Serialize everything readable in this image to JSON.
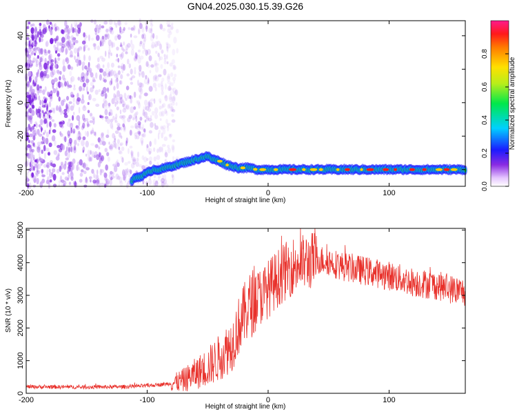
{
  "title": "GN04.2025.030.15.39.G26",
  "colors": {
    "snr_line": "#e8302a",
    "ridge": "#1fd03a",
    "scatter": "#7a1fe0",
    "frame": "#000000"
  },
  "chart_data": [
    {
      "type": "heatmap",
      "xlabel": "Height of straight line (km)",
      "ylabel": "Frequency (Hz)",
      "xlim": [
        -200,
        163
      ],
      "ylim": [
        -50,
        49
      ],
      "xticks": [
        -200,
        -100,
        0,
        100
      ],
      "yticks": [
        -40,
        -20,
        0,
        20,
        40
      ],
      "ridge": {
        "x": [
          -113,
          -110,
          -105,
          -100,
          -95,
          -90,
          -85,
          -80,
          -75,
          -70,
          -65,
          -60,
          -55,
          -50,
          -48,
          -45,
          -40,
          -35,
          -30,
          -25,
          -20,
          -15,
          -10,
          0,
          20,
          40,
          60,
          80,
          100,
          120,
          140,
          163
        ],
        "y": [
          -47,
          -45,
          -44,
          -42,
          -40,
          -40,
          -39,
          -38,
          -37,
          -36,
          -35,
          -34,
          -33,
          -32,
          -33,
          -34,
          -35,
          -37,
          -38,
          -39,
          -39,
          -39,
          -40,
          -40,
          -40,
          -40,
          -40,
          -40,
          -40,
          -40,
          -40,
          -40
        ]
      },
      "colorbar": {
        "label": "Normalized spectral amplitude",
        "range": [
          0,
          1
        ],
        "ticks": [
          0.0,
          0.2,
          0.4,
          0.6,
          0.8
        ],
        "tick_labels": [
          "0.0",
          "0.2",
          "0.4",
          "0.6",
          "0.8"
        ]
      }
    },
    {
      "type": "line",
      "xlabel": "Height of straight line (km)",
      "ylabel": "SNR (10 * v/v)",
      "xlim": [
        -200,
        163
      ],
      "ylim": [
        0,
        5050
      ],
      "xticks": [
        -200,
        -100,
        0,
        100
      ],
      "yticks": [
        0,
        1000,
        2000,
        3000,
        4000,
        5000
      ],
      "envelope": {
        "x": [
          -200,
          -150,
          -120,
          -100,
          -80,
          -70,
          -60,
          -50,
          -40,
          -30,
          -25,
          -20,
          -15,
          -10,
          -5,
          0,
          10,
          20,
          30,
          40,
          50,
          60,
          80,
          100,
          120,
          140,
          150,
          163
        ],
        "y": [
          200,
          190,
          200,
          230,
          300,
          400,
          600,
          800,
          1100,
          1500,
          2000,
          2400,
          2700,
          2900,
          3000,
          3200,
          3600,
          3900,
          4000,
          4100,
          4050,
          3900,
          3750,
          3600,
          3400,
          3300,
          3200,
          3100
        ]
      }
    }
  ]
}
